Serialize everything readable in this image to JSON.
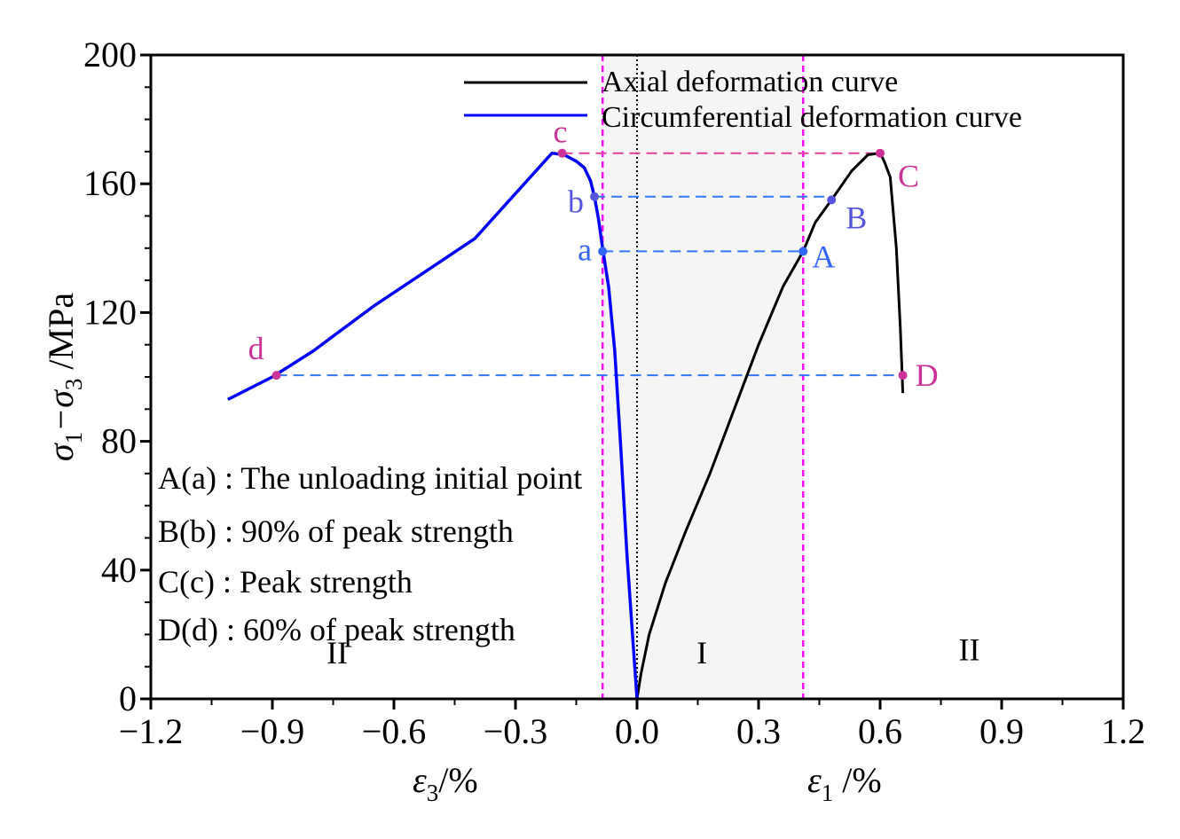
{
  "chart_data": {
    "type": "line",
    "xlim": [
      -1.2,
      1.2
    ],
    "ylim": [
      0,
      200
    ],
    "x_ticks": [
      -1.2,
      -0.9,
      -0.6,
      -0.3,
      0.0,
      0.3,
      0.6,
      0.9,
      1.2
    ],
    "x_tick_labels": [
      "−1.2",
      "−0.9",
      "−0.6",
      "−0.3",
      "0.0",
      "0.3",
      "0.6",
      "0.9",
      "1.2"
    ],
    "y_ticks": [
      0,
      40,
      80,
      120,
      160,
      200
    ],
    "y_tick_labels": [
      "0",
      "40",
      "80",
      "120",
      "160",
      "200"
    ],
    "ylabel": {
      "main": "σ",
      "sub1": "1",
      "minus": "−σ",
      "sub2": "3",
      "unit": " /MPa"
    },
    "xlabel_left": {
      "main": "ε",
      "sub": "3",
      "unit": "/%"
    },
    "xlabel_right": {
      "main": "ε",
      "sub": "1",
      "unit": " /%"
    },
    "legend": {
      "position": "top-right",
      "entries": [
        {
          "label": "Axial deformation curve",
          "color": "#000000"
        },
        {
          "label": "Circumferential deformation curve",
          "color": "#0000ff"
        }
      ]
    },
    "series": [
      {
        "name": "Axial deformation curve",
        "color": "#000000",
        "x": [
          0.0,
          0.01,
          0.03,
          0.07,
          0.12,
          0.18,
          0.24,
          0.3,
          0.36,
          0.41,
          0.44,
          0.48,
          0.53,
          0.57,
          0.6,
          0.61,
          0.625,
          0.64,
          0.65,
          0.656
        ],
        "y": [
          0,
          8,
          20,
          36,
          52,
          70,
          90,
          110,
          128,
          139,
          148,
          155,
          164,
          169,
          169.5,
          167,
          162,
          140,
          115,
          95
        ]
      },
      {
        "name": "Circumferential deformation curve",
        "color": "#0000ff",
        "x": [
          0.0,
          -0.01,
          -0.025,
          -0.04,
          -0.055,
          -0.07,
          -0.085,
          -0.095,
          -0.105,
          -0.115,
          -0.13,
          -0.15,
          -0.18,
          -0.21,
          -0.4,
          -0.65,
          -0.8,
          -0.9,
          -1.01
        ],
        "y": [
          0,
          18,
          45,
          78,
          108,
          128,
          140,
          149,
          156,
          161,
          165,
          167,
          169,
          169.5,
          143,
          122,
          108,
          100,
          93
        ]
      }
    ],
    "points": [
      {
        "label": "a",
        "x": -0.085,
        "y": 139,
        "color": "#3366ff"
      },
      {
        "label": "A",
        "x": 0.41,
        "y": 139,
        "color": "#3366ff"
      },
      {
        "label": "b",
        "x": -0.105,
        "y": 156,
        "color": "#5555dd"
      },
      {
        "label": "B",
        "x": 0.48,
        "y": 155,
        "color": "#5555dd"
      },
      {
        "label": "c",
        "x": -0.185,
        "y": 169.5,
        "color": "#cc3399"
      },
      {
        "label": "C",
        "x": 0.6,
        "y": 169.5,
        "color": "#cc3399"
      },
      {
        "label": "d",
        "x": -0.89,
        "y": 100.5,
        "color": "#cc3399"
      },
      {
        "label": "D",
        "x": 0.656,
        "y": 100.5,
        "color": "#cc3399"
      }
    ],
    "guide_lines": [
      {
        "x1": -0.085,
        "x2": 0.41,
        "y": 139,
        "color": "#3377ff"
      },
      {
        "x1": -0.105,
        "x2": 0.48,
        "y": 156,
        "color": "#3377ff"
      },
      {
        "x1": -0.185,
        "x2": 0.6,
        "y": 169.5,
        "color": "#e0409a"
      },
      {
        "x1": -0.89,
        "x2": 0.656,
        "y": 100.5,
        "color": "#3377ff"
      }
    ],
    "boundaries": [
      -0.085,
      0.41
    ],
    "zero_line_x": 0.0,
    "regions": [
      {
        "label": "II",
        "x": -0.74,
        "y": 11
      },
      {
        "label": "I",
        "x": 0.16,
        "y": 11
      },
      {
        "label": "II",
        "x": 0.82,
        "y": 12
      }
    ],
    "annotations": [
      "A(a) : The unloading initial point",
      "B(b) : 90% of peak strength",
      "C(c) : Peak strength",
      "D(d) : 60% of peak strength"
    ],
    "colors": {
      "boundary": "#ff00ff",
      "shade": "#f5f5f5",
      "axis": "#000000"
    }
  }
}
